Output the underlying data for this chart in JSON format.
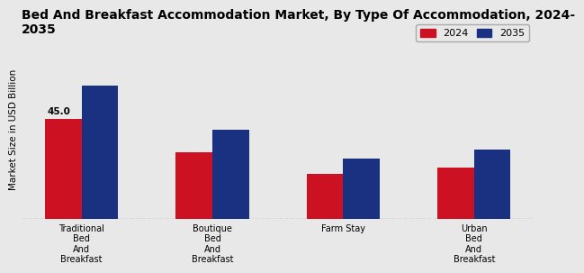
{
  "title": "Bed And Breakfast Accommodation Market, By Type Of Accommodation, 2024-\n2035",
  "ylabel": "Market Size in USD Billion",
  "categories": [
    "Traditional\nBed\nAnd\nBreakfast",
    "Boutique\nBed\nAnd\nBreakfast",
    "Farm Stay",
    "Urban\nBed\nAnd\nBreakfast"
  ],
  "values_2024": [
    45.0,
    30.0,
    20.0,
    23.0
  ],
  "values_2035": [
    60.0,
    40.0,
    27.0,
    31.0
  ],
  "color_2024": "#cc1122",
  "color_2035": "#1a3080",
  "annotation_text": "45.0",
  "legend_labels": [
    "2024",
    "2035"
  ],
  "background_color": "#e8e8e8",
  "bar_width": 0.28,
  "ylim": [
    0,
    80
  ],
  "title_fontsize": 10,
  "label_fontsize": 7.5,
  "tick_fontsize": 7,
  "legend_fontsize": 8
}
